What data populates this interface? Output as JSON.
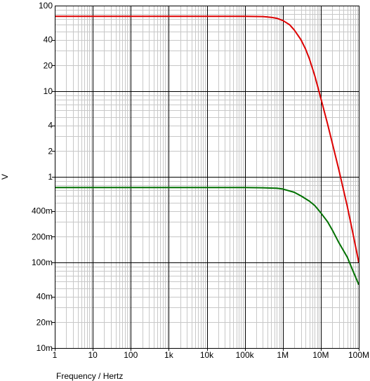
{
  "chart_data": {
    "type": "line",
    "title": "",
    "xlabel": "Frequency / Hertz",
    "ylabel": "V",
    "xscale": "log",
    "yscale": "log",
    "xlim": [
      1,
      100000000
    ],
    "ylim": [
      0.01,
      100
    ],
    "grid": true,
    "legend": "none",
    "x_ticks": [
      {
        "value": 1,
        "label": "1"
      },
      {
        "value": 10,
        "label": "10"
      },
      {
        "value": 100,
        "label": "100"
      },
      {
        "value": 1000,
        "label": "1k"
      },
      {
        "value": 10000,
        "label": "10k"
      },
      {
        "value": 100000,
        "label": "100k"
      },
      {
        "value": 1000000,
        "label": "1M"
      },
      {
        "value": 10000000,
        "label": "10M"
      },
      {
        "value": 100000000,
        "label": "100M"
      }
    ],
    "y_ticks": [
      {
        "value": 100,
        "label": "100"
      },
      {
        "value": 40,
        "label": "40"
      },
      {
        "value": 20,
        "label": "20"
      },
      {
        "value": 10,
        "label": "10"
      },
      {
        "value": 4,
        "label": "4"
      },
      {
        "value": 2,
        "label": "2"
      },
      {
        "value": 1,
        "label": "1"
      },
      {
        "value": 0.4,
        "label": "400m"
      },
      {
        "value": 0.2,
        "label": "200m"
      },
      {
        "value": 0.1,
        "label": "100m"
      },
      {
        "value": 0.04,
        "label": "40m"
      },
      {
        "value": 0.02,
        "label": "20m"
      },
      {
        "value": 0.01,
        "label": "10m"
      }
    ],
    "series": [
      {
        "color": "#dd0000",
        "points": [
          [
            1,
            75
          ],
          [
            10,
            75
          ],
          [
            100,
            75
          ],
          [
            1000,
            75
          ],
          [
            10000,
            75
          ],
          [
            100000,
            75
          ],
          [
            300000,
            74.5
          ],
          [
            500000,
            73
          ],
          [
            700000,
            71
          ],
          [
            1000000,
            67
          ],
          [
            1500000,
            60
          ],
          [
            2000000,
            52
          ],
          [
            3000000,
            40
          ],
          [
            4000000,
            31
          ],
          [
            5000000,
            24
          ],
          [
            7000000,
            15
          ],
          [
            10000000,
            8.3
          ],
          [
            15000000,
            4.2
          ],
          [
            20000000,
            2.5
          ],
          [
            30000000,
            1.2
          ],
          [
            50000000,
            0.45
          ],
          [
            70000000,
            0.22
          ],
          [
            100000000,
            0.1
          ]
        ]
      },
      {
        "color": "#007000",
        "points": [
          [
            1,
            0.75
          ],
          [
            10,
            0.75
          ],
          [
            100,
            0.75
          ],
          [
            1000,
            0.75
          ],
          [
            10000,
            0.75
          ],
          [
            100000,
            0.75
          ],
          [
            300000,
            0.745
          ],
          [
            700000,
            0.735
          ],
          [
            1000000,
            0.72
          ],
          [
            2000000,
            0.66
          ],
          [
            3000000,
            0.6
          ],
          [
            5000000,
            0.52
          ],
          [
            7000000,
            0.46
          ],
          [
            10000000,
            0.38
          ],
          [
            15000000,
            0.3
          ],
          [
            20000000,
            0.24
          ],
          [
            30000000,
            0.17
          ],
          [
            50000000,
            0.115
          ],
          [
            70000000,
            0.08
          ],
          [
            100000000,
            0.055
          ]
        ]
      }
    ]
  }
}
